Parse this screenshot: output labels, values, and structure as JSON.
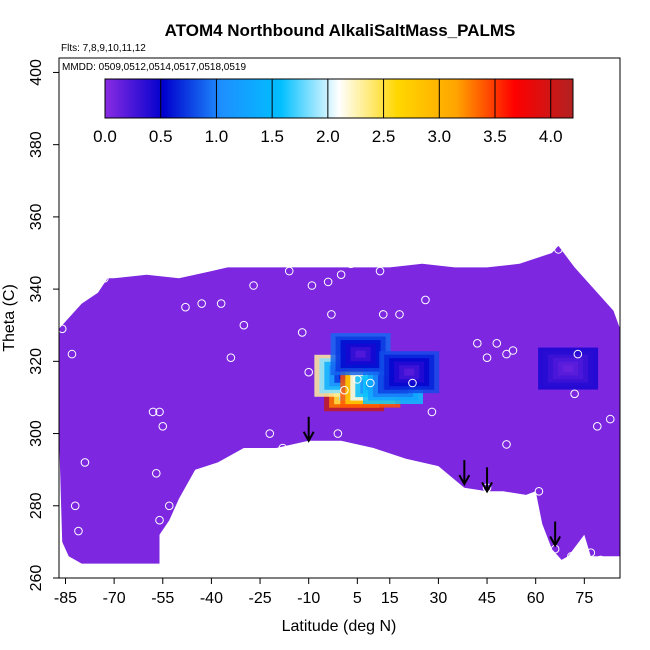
{
  "chart_data": {
    "type": "heatmap",
    "title": "ATOM4 Northbound AlkaliSaltMass_PALMS",
    "annotations": {
      "flights": "Flts: 7,8,9,10,11,12",
      "dates": "MMDD: 0509,0512,0514,0517,0518,0519"
    },
    "xlabel": "Latitude (deg N)",
    "ylabel": "Theta (C)",
    "xlim": [
      -87,
      86
    ],
    "ylim": [
      260,
      404
    ],
    "xticks": [
      -85,
      -70,
      -55,
      -40,
      -25,
      -10,
      5,
      15,
      30,
      45,
      60,
      75
    ],
    "yticks": [
      260,
      280,
      300,
      320,
      340,
      360,
      380,
      400
    ],
    "colorbar": {
      "range": [
        0,
        4.2
      ],
      "ticks": [
        0.0,
        0.5,
        1.0,
        1.5,
        2.0,
        2.5,
        3.0,
        3.5,
        4.0
      ],
      "tick_labels": [
        "0.0",
        "0.5",
        "1.0",
        "1.5",
        "2.0",
        "2.5",
        "3.0",
        "3.5",
        "4.0"
      ],
      "colors": [
        "#8a2be2",
        "#0000cd",
        "#1e90ff",
        "#00bfff",
        "#ffffff",
        "#ffd700",
        "#ffa500",
        "#ff0000",
        "#b22222"
      ]
    },
    "background_value": 0.05,
    "hotspots": [
      {
        "lat": 4,
        "theta": 312,
        "value": 4.1
      },
      {
        "lat": 1,
        "theta": 316,
        "value": 2.3
      },
      {
        "lat": 9,
        "theta": 313,
        "value": 3.4
      },
      {
        "lat": 16,
        "theta": 314,
        "value": 1.6
      },
      {
        "lat": 6,
        "theta": 322,
        "value": 0.9
      },
      {
        "lat": 21,
        "theta": 317,
        "value": 0.8
      },
      {
        "lat": 70,
        "theta": 318,
        "value": 0.45
      }
    ],
    "measurement_points": [
      [
        -86,
        329
      ],
      [
        -83,
        322
      ],
      [
        -82,
        280
      ],
      [
        -81,
        273
      ],
      [
        -79,
        292
      ],
      [
        -73,
        343
      ],
      [
        -58,
        306
      ],
      [
        -56,
        306
      ],
      [
        -55,
        302
      ],
      [
        -57,
        289
      ],
      [
        -56,
        276
      ],
      [
        -53,
        280
      ],
      [
        -48,
        335
      ],
      [
        -43,
        336
      ],
      [
        -37,
        336
      ],
      [
        -34,
        321
      ],
      [
        -40,
        290
      ],
      [
        -35,
        292
      ],
      [
        -30,
        330
      ],
      [
        -27,
        341
      ],
      [
        -22,
        300
      ],
      [
        -18,
        296
      ],
      [
        -16,
        345
      ],
      [
        -12,
        328
      ],
      [
        -10,
        317
      ],
      [
        -9,
        341
      ],
      [
        -4,
        342
      ],
      [
        -3,
        333
      ],
      [
        -1,
        300
      ],
      [
        0,
        344
      ],
      [
        1,
        312
      ],
      [
        3,
        347
      ],
      [
        5,
        315
      ],
      [
        9,
        314
      ],
      [
        12,
        345
      ],
      [
        13,
        333
      ],
      [
        18,
        333
      ],
      [
        22,
        314
      ],
      [
        26,
        337
      ],
      [
        28,
        306
      ],
      [
        42,
        325
      ],
      [
        45,
        321
      ],
      [
        48,
        325
      ],
      [
        51,
        322
      ],
      [
        53,
        323
      ],
      [
        45,
        285
      ],
      [
        51,
        297
      ],
      [
        61,
        284
      ],
      [
        66,
        268
      ],
      [
        71,
        266
      ],
      [
        72,
        311
      ],
      [
        73,
        322
      ],
      [
        77,
        267
      ],
      [
        79,
        302
      ],
      [
        80,
        265
      ],
      [
        83,
        304
      ],
      [
        67,
        351
      ]
    ],
    "arrows": [
      {
        "lat": -10,
        "theta": 298
      },
      {
        "lat": 38,
        "theta": 286
      },
      {
        "lat": 45,
        "theta": 284
      },
      {
        "lat": 66,
        "theta": 269
      }
    ],
    "data_outline_top": [
      [
        -87,
        329
      ],
      [
        -80,
        336
      ],
      [
        -75,
        339
      ],
      [
        -72,
        343
      ],
      [
        -70,
        343
      ],
      [
        -60,
        344
      ],
      [
        -50,
        343
      ],
      [
        -40,
        345
      ],
      [
        -35,
        346
      ],
      [
        -25,
        346
      ],
      [
        -15,
        346
      ],
      [
        -5,
        346
      ],
      [
        5,
        346
      ],
      [
        15,
        346
      ],
      [
        25,
        347
      ],
      [
        35,
        346
      ],
      [
        45,
        346
      ],
      [
        55,
        347
      ],
      [
        65,
        350
      ],
      [
        67,
        352
      ],
      [
        72,
        346
      ],
      [
        78,
        340
      ],
      [
        84,
        334
      ],
      [
        86,
        329
      ]
    ],
    "data_outline_bottom": [
      [
        86,
        266
      ],
      [
        80,
        266
      ],
      [
        77,
        266
      ],
      [
        75,
        272
      ],
      [
        70,
        266
      ],
      [
        68,
        265
      ],
      [
        65,
        268
      ],
      [
        62,
        275
      ],
      [
        60,
        284
      ],
      [
        57,
        283
      ],
      [
        50,
        284
      ],
      [
        45,
        284
      ],
      [
        38,
        285
      ],
      [
        30,
        291
      ],
      [
        20,
        293
      ],
      [
        10,
        296
      ],
      [
        0,
        298
      ],
      [
        -10,
        298
      ],
      [
        -20,
        296
      ],
      [
        -30,
        296
      ],
      [
        -38,
        292
      ],
      [
        -45,
        290
      ],
      [
        -50,
        282
      ],
      [
        -53,
        276
      ],
      [
        -56,
        272
      ],
      [
        -56,
        264
      ],
      [
        -80,
        264
      ],
      [
        -84,
        266
      ],
      [
        -86,
        270
      ],
      [
        -87,
        300
      ]
    ]
  }
}
